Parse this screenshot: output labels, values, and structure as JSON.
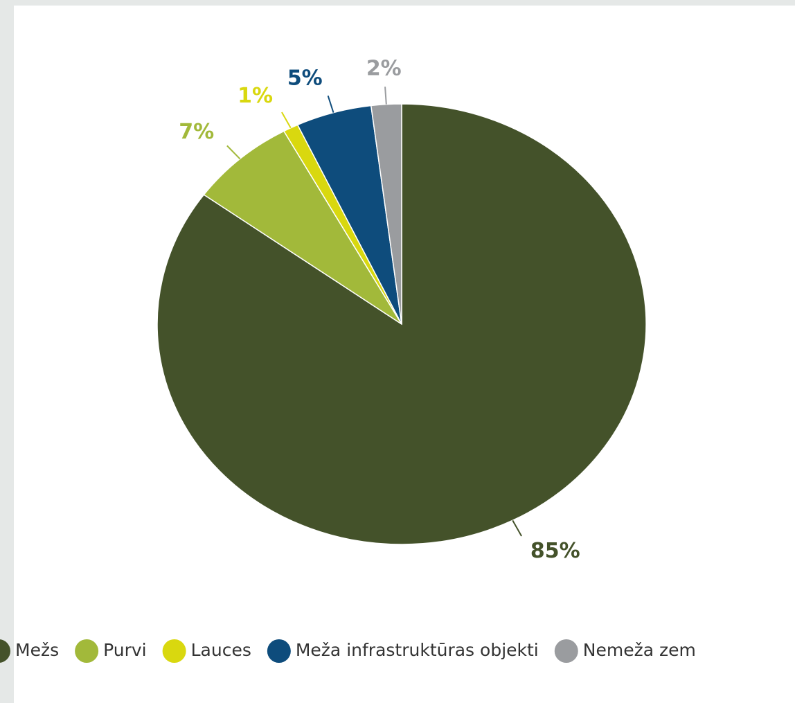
{
  "chart_data": {
    "type": "pie",
    "categories": [
      "Mežs",
      "Purvi",
      "Lauces",
      "Meža infrastruktūras objekti",
      "Nemeža zem"
    ],
    "values": [
      85,
      7,
      1,
      5,
      2
    ],
    "value_labels": [
      "85%",
      "7%",
      "1%",
      "5%",
      "2%"
    ],
    "colors": [
      "#44522a",
      "#a2b93a",
      "#d9d80f",
      "#0e4c7c",
      "#9a9c9f"
    ],
    "legend": "bottom"
  }
}
